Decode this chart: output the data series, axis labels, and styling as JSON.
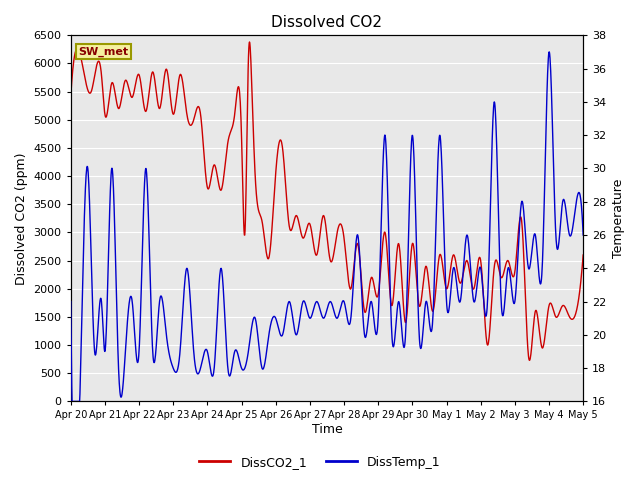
{
  "title": "Dissolved CO2",
  "xlabel": "Time",
  "ylabel_left": "Dissolved CO2 (ppm)",
  "ylabel_right": "Temperature",
  "label_box": "SW_met",
  "ylim_left": [
    0,
    6500
  ],
  "ylim_right": [
    16,
    38
  ],
  "xtick_labels": [
    "Apr 20",
    "Apr 21",
    "Apr 22",
    "Apr 23",
    "Apr 24",
    "Apr 25",
    "Apr 26",
    "Apr 27",
    "Apr 28",
    "Apr 29",
    "Apr 30",
    "May 1",
    "May 2",
    "May 3",
    "May 4",
    "May 5"
  ],
  "line1_color": "#cc0000",
  "line2_color": "#0000cc",
  "legend_labels": [
    "DissCO2_1",
    "DissTemp_1"
  ],
  "plot_bg": "#e8e8e8",
  "grid_color": "#ffffff",
  "linewidth": 1.0,
  "yticks_left": [
    0,
    500,
    1000,
    1500,
    2000,
    2500,
    3000,
    3500,
    4000,
    4500,
    5000,
    5500,
    6000,
    6500
  ],
  "yticks_right": [
    16,
    18,
    20,
    22,
    24,
    26,
    28,
    30,
    32,
    34,
    36,
    38
  ]
}
